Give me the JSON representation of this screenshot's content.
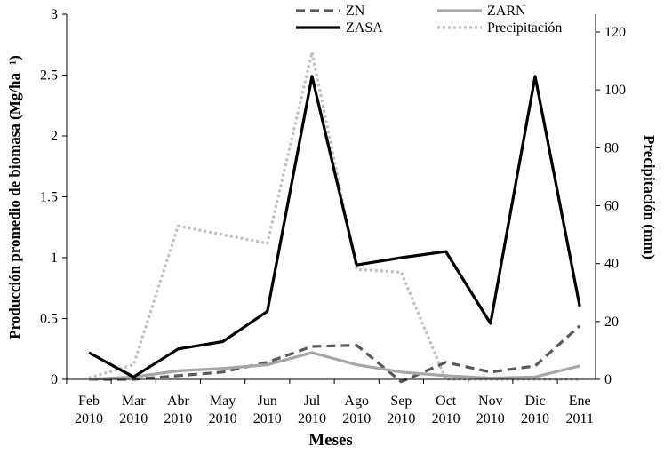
{
  "chart_data": {
    "type": "line",
    "xlabel": "Meses",
    "ylabel": "Producción promedio de biomasa  (Mg/ha⁻¹)",
    "ylabel_right": "Precipitación (mm)",
    "categories": [
      [
        "Feb",
        "2010"
      ],
      [
        "Mar",
        "2010"
      ],
      [
        "Abr",
        "2010"
      ],
      [
        "May",
        "2010"
      ],
      [
        "Jun",
        "2010"
      ],
      [
        "Jul",
        "2010"
      ],
      [
        "Ago",
        "2010"
      ],
      [
        "Sep",
        "2010"
      ],
      [
        "Oct",
        "2010"
      ],
      [
        "Nov",
        "2010"
      ],
      [
        "Dic",
        "2010"
      ],
      [
        "Ene",
        "2011"
      ]
    ],
    "ylim": [
      0,
      3
    ],
    "yticks": [
      "0",
      "0.5",
      "1",
      "1.5",
      "2",
      "2.5",
      "3"
    ],
    "ylim_right": [
      0,
      130
    ],
    "yticks_right": [
      "0",
      "20",
      "40",
      "60",
      "80",
      "100",
      "120"
    ],
    "legend_position": "top",
    "series": [
      {
        "name": "ZN",
        "axis": "left",
        "style": "dashed",
        "color": "#595959",
        "values": [
          0.0,
          0.0,
          0.03,
          0.06,
          0.14,
          0.27,
          0.28,
          -0.02,
          0.14,
          0.06,
          0.11,
          0.44
        ]
      },
      {
        "name": "ZARN",
        "axis": "left",
        "style": "solid",
        "color": "#a6a6a6",
        "values": [
          0.0,
          0.02,
          0.07,
          0.09,
          0.12,
          0.22,
          0.12,
          0.06,
          0.03,
          0.01,
          0.02,
          0.11
        ]
      },
      {
        "name": "ZASA",
        "axis": "left",
        "style": "solid",
        "color": "#000000",
        "values": [
          0.22,
          0.02,
          0.25,
          0.31,
          0.56,
          2.49,
          0.94,
          1.0,
          1.05,
          0.46,
          2.49,
          0.6
        ]
      },
      {
        "name": "Precipitación",
        "axis": "right",
        "style": "dotted",
        "color": "#bfbfbf",
        "values": [
          0.5,
          5,
          53,
          50,
          47,
          113,
          38,
          37,
          0,
          0,
          0,
          0
        ]
      }
    ]
  }
}
